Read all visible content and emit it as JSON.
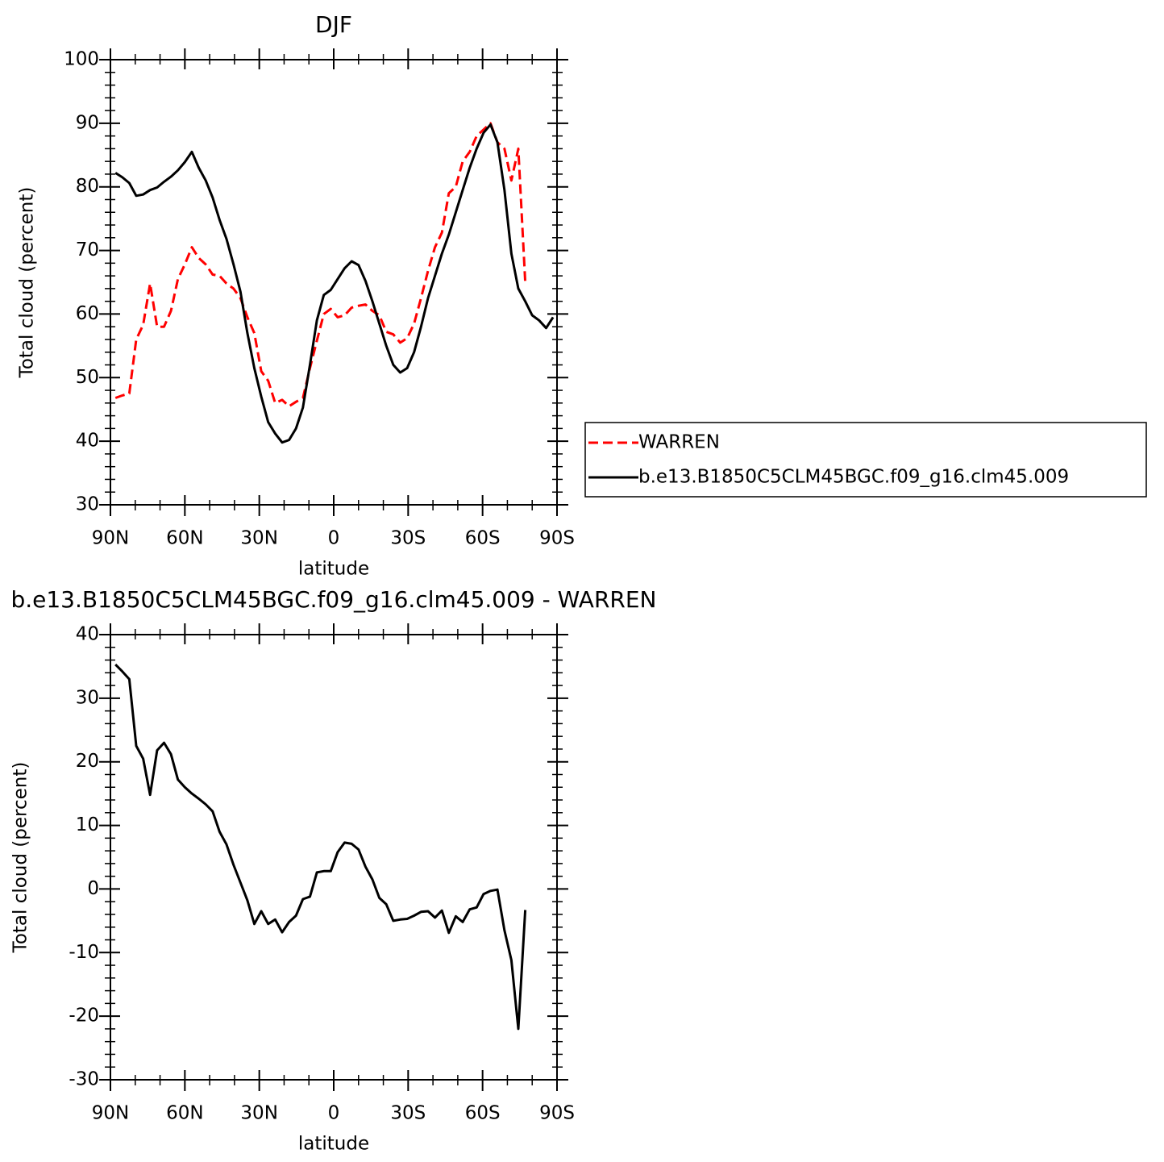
{
  "chart_data": [
    {
      "type": "line",
      "title": "DJF",
      "x_label": "latitude",
      "y_label": "Total cloud (percent)",
      "x": [
        88,
        85.2,
        82.4,
        79.6,
        76.8,
        74,
        71.2,
        68.4,
        65.6,
        62.8,
        60,
        57.2,
        54.4,
        51.6,
        48.8,
        46,
        43.2,
        40.4,
        37.6,
        34.8,
        32,
        29.2,
        26.4,
        23.6,
        20.8,
        18,
        15.2,
        12.4,
        9.6,
        6.8,
        4,
        1.2,
        -1.6,
        -4.4,
        -7.2,
        -10,
        -12.8,
        -15.6,
        -18.4,
        -21.2,
        -24,
        -26.8,
        -29.6,
        -32.4,
        -35.2,
        -38,
        -40.8,
        -43.6,
        -46.4,
        -49.2,
        -52,
        -54.8,
        -57.6,
        -60.4,
        -63.2,
        -66,
        -68.8,
        -71.6,
        -74.4,
        -77.2,
        -80,
        -82.8,
        -85.6,
        -88.4
      ],
      "xlim": [
        90,
        -90
      ],
      "xticks": [
        {
          "value": 90,
          "label": "90N"
        },
        {
          "value": 60,
          "label": "60N"
        },
        {
          "value": 30,
          "label": "30N"
        },
        0,
        {
          "value": -30,
          "label": "30S"
        },
        {
          "value": -60,
          "label": "60S"
        },
        {
          "value": -90,
          "label": "90S"
        }
      ],
      "ylim": [
        30,
        100
      ],
      "yticks": [
        30,
        40,
        50,
        60,
        70,
        80,
        90,
        100
      ],
      "legend": "right",
      "series": [
        {
          "name": "WARREN",
          "color": "#ff0000",
          "dashed": true,
          "values": [
            46.8,
            47.2,
            47.5,
            56.0,
            58.3,
            64.8,
            58.0,
            58.0,
            60.5,
            65.5,
            67.8,
            70.5,
            68.8,
            67.8,
            66.2,
            66.0,
            64.8,
            64.0,
            62.5,
            59.5,
            57.0,
            51.0,
            49.5,
            46.0,
            46.5,
            45.5,
            46.2,
            46.8,
            51.5,
            55.8,
            60.0,
            60.8,
            59.5,
            59.8,
            61.0,
            61.3,
            61.5,
            60.5,
            59.8,
            57.2,
            56.8,
            55.5,
            56.2,
            58.5,
            62.5,
            66.8,
            70.5,
            72.8,
            79.0,
            80.0,
            84.0,
            85.5,
            88.0,
            89.0,
            90.0,
            87.0,
            86.0,
            81.0,
            86.0,
            65.0,
            null,
            null,
            null,
            null
          ]
        },
        {
          "name": "b.e13.B1850C5CLM45BGC.f09_g16.clm45.009",
          "color": "#000000",
          "dashed": false,
          "values": [
            82.2,
            81.5,
            80.6,
            78.6,
            78.8,
            79.5,
            79.9,
            80.8,
            81.6,
            82.6,
            83.9,
            85.5,
            83.0,
            81.0,
            78.3,
            74.8,
            71.8,
            67.8,
            63.5,
            57.0,
            51.5,
            47.0,
            43.0,
            41.2,
            39.8,
            40.2,
            42.0,
            45.3,
            52.0,
            59.0,
            63.0,
            63.8,
            65.5,
            67.2,
            68.3,
            67.7,
            65.2,
            62.0,
            58.5,
            55.0,
            52.0,
            50.8,
            51.5,
            54.0,
            58.0,
            62.5,
            66.0,
            69.5,
            72.5,
            76.0,
            79.5,
            83.0,
            86.0,
            88.5,
            89.8,
            87.0,
            79.5,
            69.5,
            64.0,
            62.0,
            59.8,
            59.0,
            57.8,
            59.5
          ]
        }
      ]
    },
    {
      "type": "line",
      "title": "b.e13.B1850C5CLM45BGC.f09_g16.clm45.009 - WARREN",
      "x_label": "latitude",
      "y_label": "Total cloud (percent)",
      "x": [
        88,
        85.2,
        82.4,
        79.6,
        76.8,
        74,
        71.2,
        68.4,
        65.6,
        62.8,
        60,
        57.2,
        54.4,
        51.6,
        48.8,
        46,
        43.2,
        40.4,
        37.6,
        34.8,
        32,
        29.2,
        26.4,
        23.6,
        20.8,
        18,
        15.2,
        12.4,
        9.6,
        6.8,
        4,
        1.2,
        -1.6,
        -4.4,
        -7.2,
        -10,
        -12.8,
        -15.6,
        -18.4,
        -21.2,
        -24,
        -26.8,
        -29.6,
        -32.4,
        -35.2,
        -38,
        -40.8,
        -43.6,
        -46.4,
        -49.2,
        -52,
        -54.8,
        -57.6,
        -60.4,
        -63.2,
        -66,
        -68.8,
        -71.6,
        -74.4,
        -77.2,
        -80,
        -82.8,
        -85.6,
        -88.4
      ],
      "xlim": [
        90,
        -90
      ],
      "xticks": [
        {
          "value": 90,
          "label": "90N"
        },
        {
          "value": 60,
          "label": "60N"
        },
        {
          "value": 30,
          "label": "30N"
        },
        0,
        {
          "value": -30,
          "label": "30S"
        },
        {
          "value": -60,
          "label": "60S"
        },
        {
          "value": -90,
          "label": "90S"
        }
      ],
      "ylim": [
        -30,
        40
      ],
      "yticks": [
        -30,
        -20,
        -10,
        0,
        10,
        20,
        30,
        40
      ],
      "color": "#000000",
      "values": [
        35.3,
        34.2,
        33.0,
        22.5,
        20.5,
        14.8,
        21.8,
        23.0,
        21.2,
        17.2,
        16.0,
        15.0,
        14.2,
        13.3,
        12.2,
        9.0,
        7.0,
        3.8,
        1.0,
        -1.8,
        -5.5,
        -3.5,
        -5.5,
        -4.8,
        -6.8,
        -5.2,
        -4.2,
        -1.6,
        -1.2,
        2.6,
        2.8,
        2.8,
        5.8,
        7.3,
        7.1,
        6.2,
        3.5,
        1.5,
        -1.4,
        -2.4,
        -5.0,
        -4.8,
        -4.7,
        -4.2,
        -3.6,
        -3.5,
        -4.5,
        -3.4,
        -6.9,
        -4.3,
        -5.2,
        -3.2,
        -2.9,
        -0.8,
        -0.3,
        -0.1,
        -6.5,
        -11.2,
        -22.0,
        -3.3,
        null,
        null,
        null,
        null
      ]
    }
  ]
}
